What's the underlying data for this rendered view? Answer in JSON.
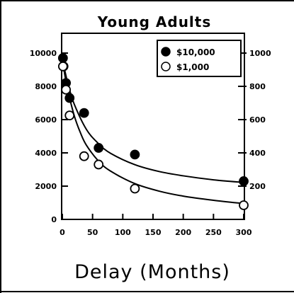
{
  "chart_data": {
    "type": "scatter",
    "title": "Young Adults",
    "xlabel": "Delay (Months)",
    "ylabel": "",
    "xlim": [
      0,
      300
    ],
    "ylim": [
      0,
      10000
    ],
    "right_ylim": [
      0,
      1000
    ],
    "x_ticks": [
      "0",
      "50",
      "100",
      "150",
      "200",
      "250",
      "300"
    ],
    "x_tick_values": [
      0,
      50,
      100,
      150,
      200,
      250,
      300
    ],
    "y_ticks": [
      "0",
      "2000",
      "4000",
      "6000",
      "8000",
      "10000"
    ],
    "y_tick_values": [
      0,
      2000,
      4000,
      6000,
      8000,
      10000
    ],
    "right_y_ticks": [
      "200",
      "400",
      "600",
      "800",
      "1000"
    ],
    "right_y_tick_values": [
      200,
      400,
      600,
      800,
      1000
    ],
    "legend_position": "top-right",
    "grid": false,
    "series": [
      {
        "name": "$10,000",
        "marker": "filled-circle",
        "color": "#000000",
        "axis": "left",
        "x": [
          1,
          2,
          6,
          12,
          36,
          60,
          120,
          300
        ],
        "y": [
          9700,
          9200,
          8200,
          7300,
          6400,
          4300,
          3900,
          2300
        ],
        "fit_x": [
          0,
          5,
          10,
          20,
          40,
          60,
          80,
          120,
          160,
          200,
          250,
          300
        ],
        "fit_y": [
          9600,
          8800,
          8050,
          6900,
          5400,
          4550,
          3970,
          3290,
          2880,
          2620,
          2380,
          2220
        ]
      },
      {
        "name": "$1,000",
        "marker": "open-circle",
        "color": "#000000",
        "axis": "right",
        "x": [
          1,
          6,
          12,
          36,
          60,
          120,
          300
        ],
        "y": [
          920,
          780,
          625,
          380,
          330,
          185,
          85
        ],
        "fit_x": [
          0,
          5,
          10,
          20,
          30,
          40,
          60,
          80,
          120,
          160,
          200,
          250,
          300
        ],
        "fit_y": [
          960,
          850,
          760,
          620,
          520,
          445,
          350,
          290,
          215,
          170,
          140,
          115,
          95
        ]
      }
    ]
  }
}
